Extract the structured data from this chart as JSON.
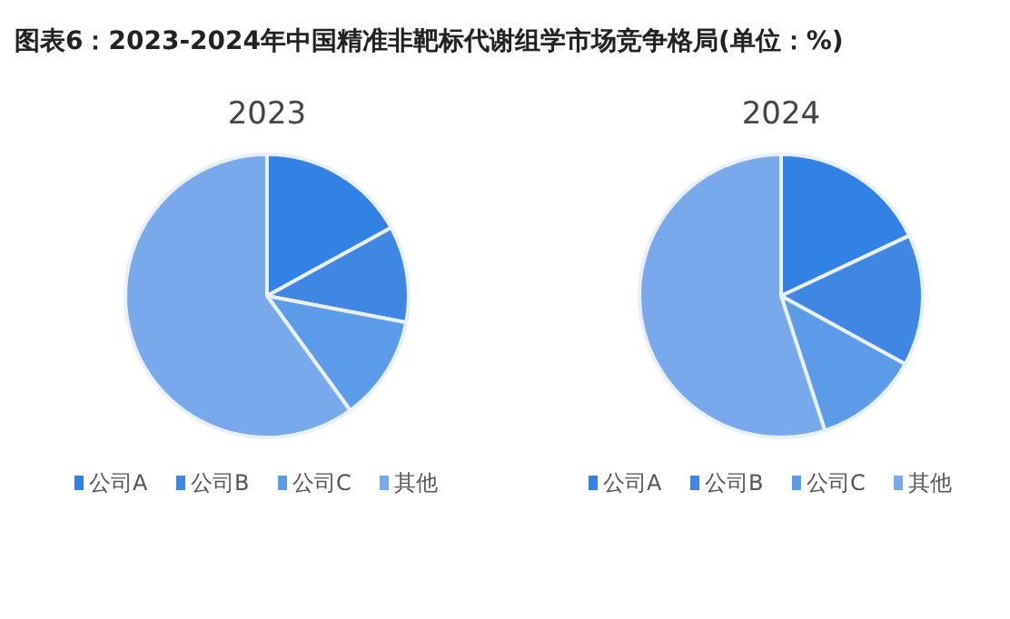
{
  "chart_data": [
    {
      "type": "pie",
      "title": "2023",
      "annotations": [
        "图表6：2023-2024年中国精准非靶标代谢组学市场竞争格局(单位：%)"
      ],
      "categories": [
        "公司A",
        "公司B",
        "公司C",
        "其他"
      ],
      "values": [
        17,
        11,
        12,
        60
      ],
      "colors": [
        "#3282e6",
        "#3f87e2",
        "#5b9be8",
        "#78aaeb"
      ],
      "legend": "bottom"
    },
    {
      "type": "pie",
      "title": "2024",
      "categories": [
        "公司A",
        "公司B",
        "公司C",
        "其他"
      ],
      "values": [
        18,
        15,
        12,
        55
      ],
      "colors": [
        "#3282e6",
        "#3f87e2",
        "#5b9be8",
        "#78aaeb"
      ],
      "legend": "bottom"
    }
  ]
}
